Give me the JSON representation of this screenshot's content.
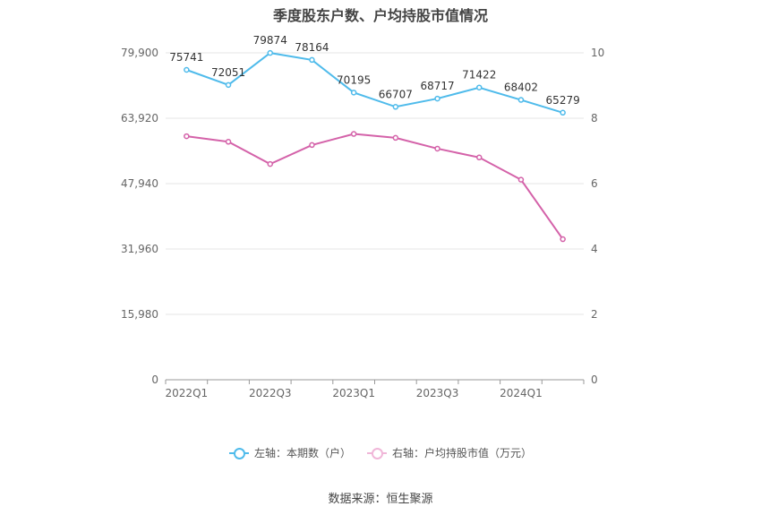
{
  "title": "季度股东户数、户均持股市值情况",
  "source": "数据来源：恒生聚源",
  "legend": {
    "left": "左轴：本期数（户）",
    "right": "右轴：户均持股市值（万元）"
  },
  "colors": {
    "left_series": "#4fbbeb",
    "right_series": "#d462a9"
  },
  "chart_data": {
    "type": "line",
    "title": "季度股东户数、户均持股市值情况",
    "x": [
      "2022Q1",
      "2022Q2",
      "2022Q3",
      "2022Q4",
      "2023Q1",
      "2023Q2",
      "2023Q3",
      "2023Q4",
      "2024Q1",
      "2024Q2"
    ],
    "x_tick_labels": [
      "2022Q1",
      "2022Q3",
      "2023Q1",
      "2023Q3",
      "2024Q1"
    ],
    "left_axis": {
      "ticks": [
        "0",
        "15,980",
        "31,960",
        "47,940",
        "63,920",
        "79,900"
      ],
      "range": [
        0,
        79900
      ]
    },
    "right_axis": {
      "ticks": [
        "0",
        "2",
        "4",
        "6",
        "8",
        "10"
      ],
      "range": [
        0,
        10
      ]
    },
    "series": [
      {
        "name": "左轴：本期数（户）",
        "axis": "left",
        "values": [
          75741,
          72051,
          79874,
          78164,
          70195,
          66707,
          68717,
          71422,
          68402,
          65279
        ],
        "labels": [
          "75741",
          "72051",
          "79874",
          "78164",
          "70195",
          "66707",
          "68717",
          "71422",
          "68402",
          "65279"
        ]
      },
      {
        "name": "右轴：户均持股市值（万元）",
        "axis": "right",
        "values": [
          7.45,
          7.28,
          6.6,
          7.18,
          7.52,
          7.4,
          7.07,
          6.8,
          6.12,
          4.3
        ]
      }
    ],
    "grid": true,
    "legend_position": "bottom"
  }
}
